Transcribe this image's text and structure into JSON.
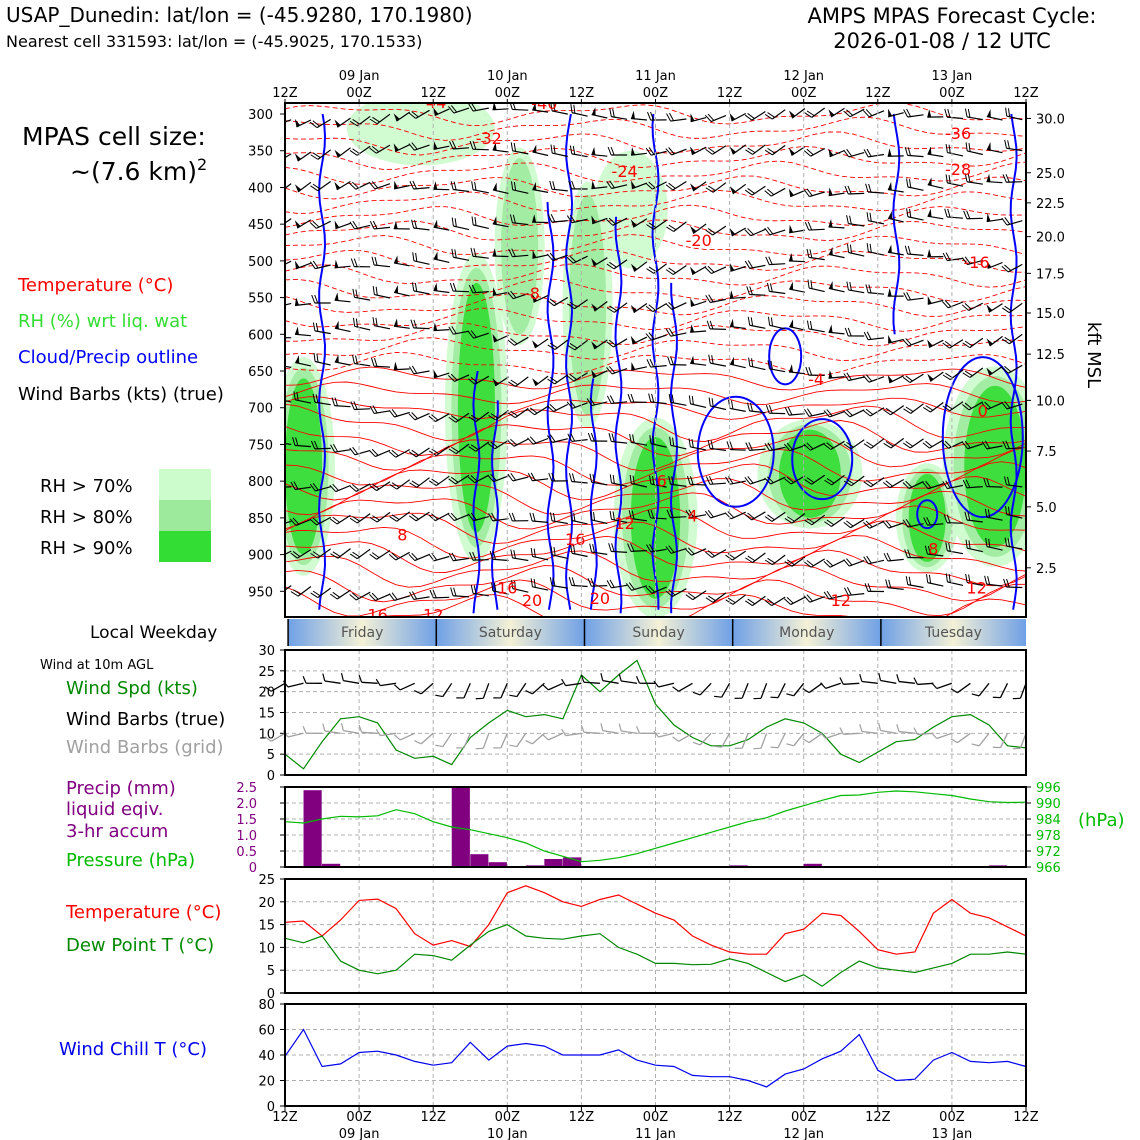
{
  "header": {
    "station_line": "USAP_Dunedin: lat/lon = (-45.9280, 170.1980)",
    "cell_line": "Nearest cell 331593: lat/lon = (-45.9025, 170.1533)",
    "product_line1": "AMPS MPAS Forecast Cycle:",
    "product_line2": "2026-01-08 / 12 UTC"
  },
  "left_legend": {
    "cell_size_label": "MPAS cell size:",
    "cell_size_value": "~(7.6 km)",
    "cell_size_exp": "2",
    "temperature": "Temperature (°C)",
    "rh": "RH (%) wrt liq. wat",
    "cloud": "Cloud/Precip outline",
    "barbs": "Wind Barbs (kts) (true)",
    "rh70": "RH > 70%",
    "rh80": "RH > 80%",
    "rh90": "RH > 90%",
    "weekday_title": "Local Weekday",
    "wind10_title": "Wind at 10m AGL",
    "wind_spd": "Wind Spd (kts)",
    "barbs_true": "Wind Barbs (true)",
    "barbs_grid": "Wind Barbs (grid)",
    "precip1": "Precip (mm)",
    "precip2": "liquid eqiv.",
    "precip3": "3-hr accum",
    "pressure": "Pressure (hPa)",
    "temp2": "Temperature (°C)",
    "dew": "Dew Point T (°C)",
    "windchill": "Wind Chill T (°C)"
  },
  "colors": {
    "temp": "#ff0000",
    "rh_text": "#33dd33",
    "cloud": "#0000ff",
    "rh70": "#ccfccc",
    "rh80": "#9dea9d",
    "rh90": "#33dd33",
    "wind_spd": "#008800",
    "pressure": "#00bb00",
    "precip": "#800080",
    "dew": "#008800",
    "windchill": "#0000ee",
    "grid_barb": "#a0a0a0"
  },
  "time_axis": {
    "top_major": [
      "09 Jan",
      "10 Jan",
      "11 Jan",
      "12 Jan",
      "13 Jan"
    ],
    "top_minor": [
      "12Z",
      "00Z",
      "12Z",
      "00Z",
      "12Z",
      "00Z",
      "12Z",
      "00Z",
      "12Z",
      "00Z",
      "12Z"
    ],
    "bottom_minor": [
      "12Z",
      "00Z",
      "12Z",
      "00Z",
      "12Z",
      "00Z",
      "12Z",
      "00Z",
      "12Z",
      "00Z",
      "12Z"
    ],
    "bottom_major": [
      "09 Jan",
      "10 Jan",
      "11 Jan",
      "12 Jan",
      "13 Jan"
    ]
  },
  "weekdays": [
    "Friday",
    "Saturday",
    "Sunday",
    "Monday",
    "Tuesday"
  ],
  "chart_data": [
    {
      "type": "heatmap",
      "name": "cross-section",
      "x_hours": [
        0,
        120
      ],
      "ylabel_left": "",
      "ylabel_right": "kft MSL",
      "pressure_levels": [
        300,
        350,
        400,
        450,
        500,
        550,
        600,
        650,
        700,
        750,
        800,
        850,
        900,
        950
      ],
      "ylim": [
        285,
        985
      ],
      "kft_ticks": [
        {
          "p": 306,
          "label": "30.0"
        },
        {
          "p": 380,
          "label": "25.0"
        },
        {
          "p": 421,
          "label": "22.5"
        },
        {
          "p": 467,
          "label": "20.0"
        },
        {
          "p": 517,
          "label": "17.5"
        },
        {
          "p": 571,
          "label": "15.0"
        },
        {
          "p": 627,
          "label": "12.5"
        },
        {
          "p": 690,
          "label": "10.0"
        },
        {
          "p": 759,
          "label": "7.5"
        },
        {
          "p": 835,
          "label": "5.0"
        },
        {
          "p": 918,
          "label": "2.5"
        }
      ],
      "temperature_labels": [
        {
          "h": 24,
          "p": 292,
          "text": "-44"
        },
        {
          "h": 42,
          "p": 293,
          "text": "-40"
        },
        {
          "h": 33,
          "p": 341,
          "text": "-32"
        },
        {
          "h": 109,
          "p": 334,
          "text": "-36"
        },
        {
          "h": 55,
          "p": 386,
          "text": "-24"
        },
        {
          "h": 109,
          "p": 383,
          "text": "-28"
        },
        {
          "h": 67,
          "p": 480,
          "text": "-20"
        },
        {
          "h": 112,
          "p": 510,
          "text": "-16"
        },
        {
          "h": 40,
          "p": 552,
          "text": "-8"
        },
        {
          "h": 86,
          "p": 669,
          "text": "-4"
        },
        {
          "h": 113,
          "p": 712,
          "text": "0"
        },
        {
          "h": 61,
          "p": 807,
          "text": "6"
        },
        {
          "h": 55,
          "p": 865,
          "text": "12"
        },
        {
          "h": 66,
          "p": 855,
          "text": "4"
        },
        {
          "h": 19,
          "p": 881,
          "text": "8"
        },
        {
          "h": 47,
          "p": 887,
          "text": "16"
        },
        {
          "h": 36,
          "p": 953,
          "text": "16"
        },
        {
          "h": 40,
          "p": 970,
          "text": "20"
        },
        {
          "h": 51,
          "p": 967,
          "text": "20"
        },
        {
          "h": 15,
          "p": 990,
          "text": "16"
        },
        {
          "h": 24,
          "p": 990,
          "text": "12"
        },
        {
          "h": 90,
          "p": 970,
          "text": "12"
        },
        {
          "h": 112,
          "p": 953,
          "text": "12"
        },
        {
          "h": 105,
          "p": 900,
          "text": "8"
        }
      ],
      "rh_zones": [
        {
          "h": 3,
          "p": 780,
          "rx": 3,
          "ry": 120,
          "level": 3
        },
        {
          "h": 31,
          "p": 700,
          "rx": 3,
          "ry": 170,
          "level": 3
        },
        {
          "h": 38,
          "p": 480,
          "rx": 3,
          "ry": 120,
          "level": 2
        },
        {
          "h": 56,
          "p": 430,
          "rx": 6,
          "ry": 80,
          "level": 1
        },
        {
          "h": 60,
          "p": 850,
          "rx": 4,
          "ry": 110,
          "level": 3
        },
        {
          "h": 85,
          "p": 790,
          "rx": 5,
          "ry": 60,
          "level": 3
        },
        {
          "h": 104,
          "p": 850,
          "rx": 3,
          "ry": 60,
          "level": 3
        },
        {
          "h": 115,
          "p": 780,
          "rx": 5,
          "ry": 110,
          "level": 3
        },
        {
          "h": 22,
          "p": 320,
          "rx": 12,
          "ry": 50,
          "level": 1
        },
        {
          "h": 49,
          "p": 560,
          "rx": 3,
          "ry": 150,
          "level": 2
        }
      ]
    },
    {
      "type": "line",
      "name": "wind10m",
      "ylim": [
        0,
        30
      ],
      "yticks": [
        0,
        5,
        10,
        15,
        20,
        25,
        30
      ],
      "x_hours": [
        0,
        3,
        6,
        9,
        12,
        15,
        18,
        21,
        24,
        27,
        30,
        33,
        36,
        39,
        42,
        45,
        48,
        51,
        54,
        57,
        60,
        63,
        66,
        69,
        72,
        75,
        78,
        81,
        84,
        87,
        90,
        93,
        96,
        99,
        102,
        105,
        108,
        111,
        114,
        117,
        120
      ],
      "series": [
        {
          "key": "wind_spd",
          "values": [
            5,
            1.5,
            8,
            13.5,
            14,
            12.5,
            6,
            4,
            4.5,
            2.5,
            9,
            12.5,
            15.5,
            14,
            14.5,
            13.5,
            24,
            20,
            24,
            27.5,
            17,
            12,
            9,
            7,
            7,
            8.5,
            11.5,
            13.5,
            12.5,
            10,
            5,
            3,
            5.5,
            8,
            8.5,
            11.5,
            14,
            14.5,
            12,
            7,
            6.5
          ]
        }
      ]
    },
    {
      "type": "bar",
      "name": "precip_pressure",
      "ylim": [
        0,
        2.5
      ],
      "yticks": [
        0,
        0.5,
        1.0,
        1.5,
        2.0,
        2.5
      ],
      "pressure_ticks": [
        966,
        972,
        978,
        984,
        990,
        996
      ],
      "pressure_ylim": [
        966,
        996
      ],
      "x_hours": [
        0,
        3,
        6,
        9,
        12,
        15,
        18,
        21,
        24,
        27,
        30,
        33,
        36,
        39,
        42,
        45,
        48,
        51,
        54,
        57,
        60,
        63,
        66,
        69,
        72,
        75,
        78,
        81,
        84,
        87,
        90,
        93,
        96,
        99,
        102,
        105,
        108,
        111,
        114,
        117,
        120
      ],
      "series": [
        {
          "key": "precip",
          "values": [
            0,
            2.4,
            0.1,
            0,
            0,
            0,
            0,
            0,
            0,
            2.5,
            0.4,
            0.15,
            0,
            0.05,
            0.25,
            0.3,
            0,
            0,
            0,
            0,
            0,
            0,
            0,
            0,
            0.05,
            0,
            0,
            0,
            0.1,
            0,
            0,
            0,
            0,
            0,
            0,
            0,
            0,
            0,
            0.05,
            0,
            0
          ]
        },
        {
          "key": "pressure",
          "values": [
            983,
            982.5,
            984,
            985,
            984.8,
            985.2,
            987.5,
            986,
            983,
            981,
            980,
            978.5,
            977,
            975,
            972,
            970,
            968,
            968.5,
            969.5,
            971,
            973,
            975,
            977,
            979,
            981,
            983,
            984.5,
            987,
            989,
            991,
            992.8,
            993,
            994,
            994.5,
            994.2,
            993.5,
            992.8,
            991.5,
            990.5,
            990.2,
            990.3
          ]
        }
      ]
    },
    {
      "type": "line",
      "name": "temperature",
      "ylim": [
        0,
        25
      ],
      "yticks": [
        0,
        5,
        10,
        15,
        20,
        25
      ],
      "x_hours": [
        0,
        3,
        6,
        9,
        12,
        15,
        18,
        21,
        24,
        27,
        30,
        33,
        36,
        39,
        42,
        45,
        48,
        51,
        54,
        57,
        60,
        63,
        66,
        69,
        72,
        75,
        78,
        81,
        84,
        87,
        90,
        93,
        96,
        99,
        102,
        105,
        108,
        111,
        114,
        117,
        120
      ],
      "series": [
        {
          "key": "temp",
          "values": [
            15.5,
            15.8,
            12.5,
            16,
            20.3,
            20.6,
            18.5,
            13,
            10.5,
            11.5,
            10.2,
            15,
            22,
            23.5,
            22,
            20,
            19,
            20.5,
            21.5,
            19.5,
            17.5,
            16,
            12.5,
            10.5,
            9,
            8.5,
            8.5,
            13,
            14,
            17.5,
            17,
            13.5,
            9.5,
            8.5,
            9,
            17.5,
            20.5,
            17.5,
            16.5,
            14.5,
            12.5
          ]
        },
        {
          "key": "dew",
          "values": [
            12,
            11,
            12.5,
            7,
            5,
            4.2,
            5,
            8.5,
            8.2,
            7.2,
            10.5,
            13.5,
            15,
            12.5,
            12,
            11.8,
            12.5,
            13,
            10,
            8.5,
            6.5,
            6.5,
            6.2,
            6.3,
            7.5,
            6.5,
            4.5,
            2.5,
            4,
            1.5,
            4.5,
            7,
            5.5,
            5,
            4.5,
            5.5,
            6.5,
            8.5,
            8.5,
            9,
            8.5
          ]
        }
      ]
    },
    {
      "type": "line",
      "name": "windchill",
      "ylim": [
        0,
        80
      ],
      "yticks": [
        0,
        20,
        40,
        60,
        80
      ],
      "x_hours": [
        0,
        3,
        6,
        9,
        12,
        15,
        18,
        21,
        24,
        27,
        30,
        33,
        36,
        39,
        42,
        45,
        48,
        51,
        54,
        57,
        60,
        63,
        66,
        69,
        72,
        75,
        78,
        81,
        84,
        87,
        90,
        93,
        96,
        99,
        102,
        105,
        108,
        111,
        114,
        117,
        120
      ],
      "series": [
        {
          "key": "windchill",
          "values": [
            39,
            60,
            31,
            33,
            42,
            43,
            40,
            35,
            32,
            34,
            50,
            36,
            47,
            49,
            47,
            40,
            40,
            40,
            44,
            36,
            32,
            31,
            24,
            23,
            23,
            20,
            15,
            25,
            29,
            37,
            43,
            56,
            28,
            20,
            21,
            36,
            42,
            35,
            34,
            35,
            31
          ]
        }
      ]
    }
  ]
}
